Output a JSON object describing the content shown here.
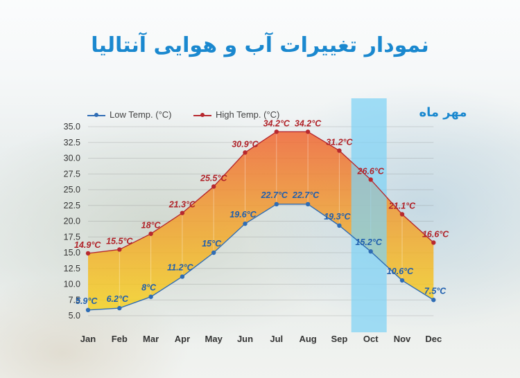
{
  "title": "نمودار تغییرات آب و هوایی آنتالیا",
  "highlight_label": "مهر ماه",
  "highlight_month": "Oct",
  "colors": {
    "title": "#1a88cf",
    "low": "#2f6db5",
    "high": "#b7282e",
    "low_label": "#1f5fae",
    "high_label": "#b02228",
    "highlight": "#7fd3f5"
  },
  "legend": [
    {
      "name": "Low Temp. (°C)",
      "color": "#2f6db5"
    },
    {
      "name": "High Temp. (°C)",
      "color": "#b7282e"
    }
  ],
  "chart_data": {
    "type": "area",
    "categories": [
      "Jan",
      "Feb",
      "Mar",
      "Apr",
      "May",
      "Jun",
      "Jul",
      "Aug",
      "Sep",
      "Oct",
      "Nov",
      "Dec"
    ],
    "series": [
      {
        "name": "Low Temp. (°C)",
        "values": [
          5.9,
          6.2,
          8,
          11.2,
          15,
          19.6,
          22.7,
          22.7,
          19.3,
          15.2,
          10.6,
          7.5
        ],
        "labels": [
          "5.9°C",
          "6.2°C",
          "8°C",
          "11.2°C",
          "15°C",
          "19.6°C",
          "22.7°C",
          "22.7°C",
          "19.3°C",
          "15.2°C",
          "10.6°C",
          "7.5°C"
        ]
      },
      {
        "name": "High Temp. (°C)",
        "values": [
          14.9,
          15.5,
          18,
          21.3,
          25.5,
          30.9,
          34.2,
          34.2,
          31.2,
          26.6,
          21.1,
          16.6
        ],
        "labels": [
          "14.9°C",
          "15.5°C",
          "18°C",
          "21.3°C",
          "25.5°C",
          "30.9°C",
          "34.2°C",
          "34.2°C",
          "31.2°C",
          "26.6°C",
          "21.1°C",
          "16.6°C"
        ]
      }
    ],
    "yticks": [
      "5.0",
      "7.5",
      "10.0",
      "12.5",
      "15.0",
      "17.5",
      "20.0",
      "22.5",
      "25.0",
      "27.5",
      "30.0",
      "32.5",
      "35.0"
    ],
    "ylim": [
      5,
      35
    ],
    "grid": true,
    "legend_position": "top-left"
  }
}
